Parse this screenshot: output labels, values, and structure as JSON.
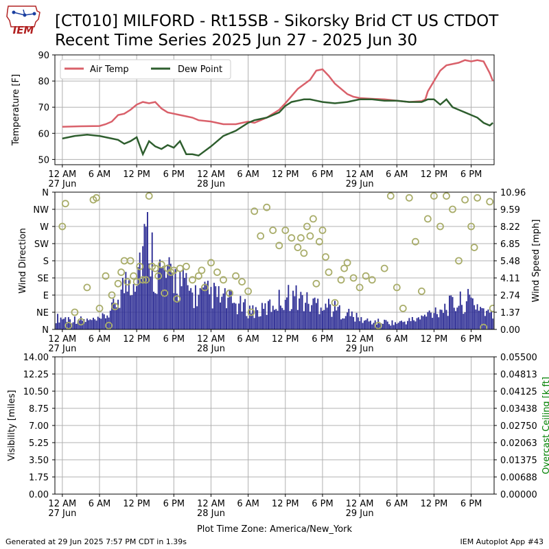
{
  "header": {
    "logo_text": "IEM",
    "title_line1": "[CT010] MILFORD - Rt15SB - Sikorsky Brid CT US  CTDOT",
    "title_line2": "Recent Time Series 2025 Jun 27 - 2025 Jun 30"
  },
  "footer": {
    "generated": "Generated at 29 Jun 2025 7:57 PM CDT in 1.39s",
    "app": "IEM Autoplot App #43",
    "timezone": "Plot Time Zone: America/New_York"
  },
  "colors": {
    "air_temp": "#d9606a",
    "dew_point": "#2e5e2e",
    "wind_speed": "#2e2e95",
    "wind_dir": "#a9ad6a",
    "ceiling_label": "#008000",
    "grid": "#b0b0b0"
  },
  "time_axis": {
    "unit": "hours since 27 Jun 12 AM",
    "range": [
      -1.2,
      69.7
    ],
    "ticks": [
      {
        "t": 0,
        "label": "12 AM",
        "date": "27 Jun"
      },
      {
        "t": 6,
        "label": "6 AM",
        "date": ""
      },
      {
        "t": 12,
        "label": "12 PM",
        "date": ""
      },
      {
        "t": 18,
        "label": "6 PM",
        "date": ""
      },
      {
        "t": 24,
        "label": "12 AM",
        "date": "28 Jun"
      },
      {
        "t": 30,
        "label": "6 AM",
        "date": ""
      },
      {
        "t": 36,
        "label": "12 PM",
        "date": ""
      },
      {
        "t": 42,
        "label": "6 PM",
        "date": ""
      },
      {
        "t": 48,
        "label": "12 AM",
        "date": "29 Jun"
      },
      {
        "t": 54,
        "label": "6 AM",
        "date": ""
      },
      {
        "t": 60,
        "label": "12 PM",
        "date": ""
      },
      {
        "t": 66,
        "label": "6 PM",
        "date": ""
      }
    ]
  },
  "chart_data": [
    {
      "type": "line",
      "ylabel": "Temperature [F]",
      "ylim": [
        48,
        90
      ],
      "yticks": [
        "50",
        "60",
        "70",
        "80",
        "90"
      ],
      "legend_position": "top-left",
      "grid": true,
      "series": [
        {
          "name": "Air Temp",
          "x": [
            0,
            3,
            6,
            7,
            8,
            9,
            10,
            11,
            12,
            13,
            14,
            15,
            16,
            17,
            18,
            19,
            20,
            21,
            22,
            24,
            26,
            28,
            30,
            31,
            33,
            35,
            36,
            38,
            40,
            41,
            42,
            43,
            44,
            46,
            47,
            48,
            50,
            52,
            54,
            56,
            58,
            58.6,
            59,
            60,
            61,
            62,
            64,
            65,
            66,
            67,
            68,
            69,
            69.5
          ],
          "values": [
            62.5,
            62.7,
            62.8,
            63.5,
            64.5,
            67,
            67.5,
            69,
            71,
            72,
            71.5,
            72,
            69.5,
            68,
            67.5,
            67,
            66.5,
            66,
            65,
            64.5,
            63.5,
            63.5,
            64.5,
            64,
            66,
            69,
            71.5,
            77,
            80.5,
            84,
            84.5,
            82,
            79,
            75,
            74,
            73.5,
            73.2,
            73,
            72.5,
            72,
            72.3,
            73,
            76,
            80,
            84,
            86,
            87,
            88,
            87.5,
            88,
            87.5,
            83,
            80
          ]
        },
        {
          "name": "Dew Point",
          "x": [
            0,
            2,
            4,
            6,
            7,
            8,
            9,
            10,
            11,
            12,
            13,
            14,
            15,
            16,
            17,
            18,
            19,
            20,
            21,
            22,
            24,
            26,
            28,
            30,
            31,
            33,
            35,
            36,
            37,
            38,
            39,
            40,
            41,
            42,
            44,
            46,
            48,
            50,
            52,
            54,
            56,
            58,
            59,
            60,
            61,
            62,
            63,
            64,
            65,
            66,
            67,
            68,
            69,
            69.5
          ],
          "values": [
            58,
            59,
            59.5,
            59,
            58.5,
            58,
            57.5,
            56,
            57,
            58.5,
            52,
            57,
            55,
            54,
            55.5,
            54.5,
            57,
            52,
            52,
            51.5,
            55,
            59,
            61,
            64,
            65,
            66,
            68,
            70.5,
            72,
            72.5,
            73,
            73,
            72.5,
            72,
            71.5,
            72,
            73,
            73,
            72.5,
            72.5,
            72,
            72,
            73,
            73,
            71,
            73,
            70,
            69,
            68,
            67,
            66,
            64,
            63,
            64
          ]
        }
      ]
    },
    {
      "type": "bar",
      "ylabel": "Wind Direction",
      "y2label": "Wind Speed [mph]",
      "dir_ticks": [
        "N",
        "NE",
        "E",
        "SE",
        "S",
        "SW",
        "W",
        "NW",
        "N"
      ],
      "speed_ticks": [
        "0.00",
        "1.37",
        "2.74",
        "4.11",
        "5.48",
        "6.85",
        "8.22",
        "9.59",
        "10.96"
      ],
      "speed_ylim": [
        0,
        10.96
      ],
      "direction_ylim": [
        0,
        360
      ],
      "series": [
        {
          "name": "Wind Speed",
          "x": [
            0,
            2,
            4,
            6,
            8,
            9,
            10,
            11,
            12,
            13,
            14,
            15,
            16,
            17,
            18,
            19,
            20,
            21,
            22,
            24,
            26,
            28,
            30,
            32,
            34,
            36,
            38,
            40,
            42,
            44,
            46,
            48,
            50,
            52,
            54,
            56,
            58,
            60,
            62,
            64,
            66,
            68,
            69.5
          ],
          "values": [
            0.9,
            0.8,
            0.7,
            0.7,
            1.5,
            2.6,
            3.5,
            4.0,
            4.8,
            6.5,
            7.5,
            4.6,
            4.5,
            4.0,
            4.2,
            3.8,
            3.3,
            2.8,
            2.7,
            2.8,
            2.4,
            2.0,
            1.6,
            1.4,
            2.0,
            2.6,
            2.6,
            2.0,
            2.2,
            1.6,
            1.3,
            0.8,
            0.6,
            0.6,
            0.5,
            0.7,
            0.9,
            1.5,
            1.8,
            2.1,
            2.3,
            1.6,
            1.0
          ]
        },
        {
          "name": "Wind Direction",
          "x": [
            0,
            0.5,
            1,
            2,
            3,
            4,
            5,
            5.5,
            6,
            7,
            7.5,
            8,
            8.5,
            9,
            9.5,
            10,
            10.5,
            11,
            11.5,
            12,
            12.5,
            13,
            13.5,
            14,
            14.5,
            15,
            15.5,
            16,
            16.5,
            17,
            17.5,
            18,
            18.5,
            19,
            20,
            21,
            22,
            22.5,
            23,
            24,
            25,
            26,
            27,
            28,
            29,
            30,
            30.5,
            31,
            32,
            33,
            34,
            35,
            36,
            37,
            38,
            38.5,
            39,
            39.5,
            40,
            40.5,
            41,
            41.5,
            42,
            42.5,
            43,
            44,
            45,
            45.5,
            46,
            47,
            48,
            49,
            50,
            51,
            52,
            53,
            54,
            55,
            56,
            57,
            58,
            59,
            60,
            61,
            62,
            63,
            64,
            65,
            66,
            66.5,
            67,
            68,
            69,
            69.5
          ],
          "values": [
            270,
            330,
            10,
            45,
            20,
            110,
            340,
            345,
            55,
            140,
            10,
            90,
            60,
            120,
            150,
            180,
            125,
            180,
            140,
            125,
            165,
            130,
            130,
            350,
            165,
            160,
            140,
            170,
            95,
            160,
            150,
            155,
            80,
            160,
            165,
            130,
            140,
            155,
            110,
            175,
            150,
            130,
            95,
            140,
            125,
            100,
            45,
            310,
            245,
            320,
            260,
            220,
            260,
            240,
            215,
            240,
            200,
            270,
            245,
            290,
            120,
            230,
            260,
            190,
            150,
            70,
            130,
            160,
            175,
            135,
            110,
            140,
            130,
            10,
            160,
            350,
            110,
            55,
            345,
            230,
            100,
            290,
            350,
            270,
            350,
            315,
            180,
            340,
            270,
            215,
            345,
            5,
            335,
            55
          ]
        }
      ]
    },
    {
      "type": "line",
      "ylabel": "Visibility [miles]",
      "y2label": "Overcast Ceiling [k ft]",
      "ylim": [
        0,
        14
      ],
      "yticks": [
        "0.00",
        "1.75",
        "3.50",
        "5.25",
        "7.00",
        "8.75",
        "10.50",
        "12.25",
        "14.00"
      ],
      "y2lim": [
        0,
        0.055
      ],
      "y2ticks": [
        "0.00000",
        "0.00688",
        "0.01375",
        "0.02063",
        "0.02750",
        "0.03438",
        "0.04125",
        "0.04813",
        "0.05500"
      ],
      "series": []
    }
  ]
}
